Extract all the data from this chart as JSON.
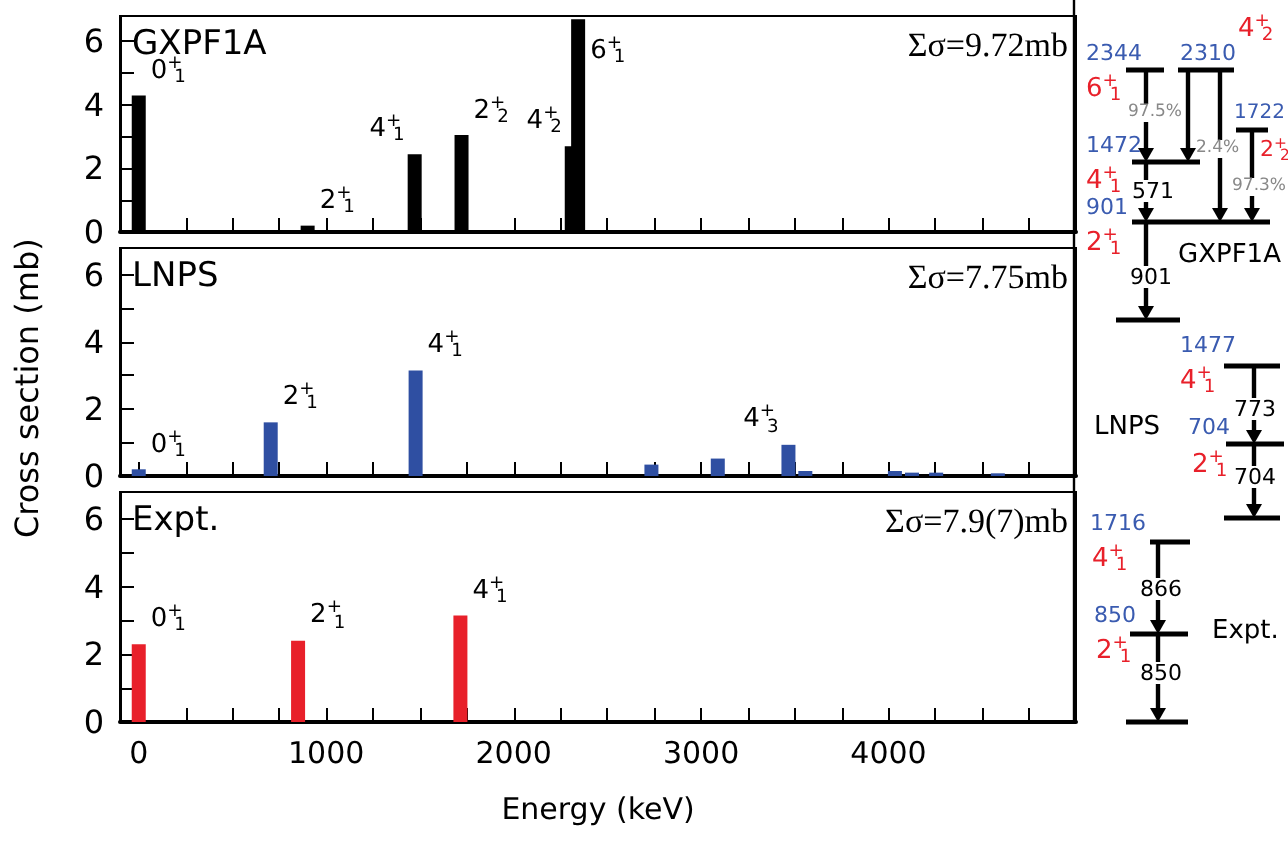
{
  "chart_data": [
    {
      "type": "bar",
      "x": [
        0,
        901,
        1472,
        1722,
        2310,
        2344
      ],
      "values": [
        4.3,
        0.2,
        2.45,
        3.05,
        2.7,
        6.7
      ],
      "color": "#000000",
      "xlim": [
        -100,
        5000
      ],
      "xticks": [
        0,
        {
          "value": 250,
          "label": null
        },
        {
          "value": 500,
          "label": null
        },
        {
          "value": 750,
          "label": null
        },
        1000,
        {
          "value": 1250,
          "label": null
        },
        {
          "value": 1500,
          "label": null
        },
        {
          "value": 1750,
          "label": null
        },
        2000,
        {
          "value": 2250,
          "label": null
        },
        {
          "value": 2500,
          "label": null
        },
        {
          "value": 2750,
          "label": null
        },
        3000,
        {
          "value": 3250,
          "label": null
        },
        {
          "value": 3500,
          "label": null
        },
        {
          "value": 3750,
          "label": null
        },
        4000,
        {
          "value": 4250,
          "label": null
        },
        {
          "value": 4500,
          "label": null
        },
        {
          "value": 4750,
          "label": null
        }
      ],
      "ylim": [
        0,
        6.8
      ],
      "yticks": [
        0,
        {
          "value": 1,
          "label": null
        },
        2,
        {
          "value": 3,
          "label": null
        },
        4,
        {
          "value": 5,
          "label": null
        },
        6
      ],
      "tick_labels": "y",
      "grid": false,
      "annotations": [
        "GXPF1A",
        "Σσ=9.72mb",
        {
          "text": "0$^{+}$$_{1}$",
          "x": 0,
          "y": 4.3
        },
        {
          "text": "2$^{+}$$_{1}$",
          "x": 901,
          "y": 0.2
        },
        {
          "text": "4$^{+}$$_{1}$",
          "x": 1472,
          "y": 2.45
        },
        {
          "text": "2$^{+}$$_{2}$",
          "x": 1722,
          "y": 3.05
        },
        {
          "text": "4$^{+}$$_{2}$",
          "x": 2310,
          "y": 2.7
        },
        {
          "text": "6$^{+}$$_{1}$",
          "x": 2344,
          "y": 6.7
        }
      ]
    },
    {
      "type": "bar",
      "x": [
        0,
        704,
        1477,
        2735,
        3089,
        3466,
        3556,
        4034,
        4125,
        4254,
        4583
      ],
      "values": [
        0.2,
        1.6,
        3.15,
        0.34,
        0.52,
        0.93,
        0.15,
        0.15,
        0.1,
        0.1,
        0.08
      ],
      "color": "#2f4fa2",
      "xlim": [
        -100,
        5000
      ],
      "xticks": [
        0,
        {
          "value": 250,
          "label": null
        },
        {
          "value": 500,
          "label": null
        },
        {
          "value": 750,
          "label": null
        },
        1000,
        {
          "value": 1250,
          "label": null
        },
        {
          "value": 1500,
          "label": null
        },
        {
          "value": 1750,
          "label": null
        },
        2000,
        {
          "value": 2250,
          "label": null
        },
        {
          "value": 2500,
          "label": null
        },
        {
          "value": 2750,
          "label": null
        },
        3000,
        {
          "value": 3250,
          "label": null
        },
        {
          "value": 3500,
          "label": null
        },
        {
          "value": 3750,
          "label": null
        },
        4000,
        {
          "value": 4250,
          "label": null
        },
        {
          "value": 4500,
          "label": null
        },
        {
          "value": 4750,
          "label": null
        }
      ],
      "ylim": [
        0,
        6.8
      ],
      "yticks": [
        0,
        {
          "value": 1,
          "label": null
        },
        2,
        {
          "value": 3,
          "label": null
        },
        4,
        {
          "value": 5,
          "label": null
        },
        6
      ],
      "tick_labels": "y",
      "grid": false,
      "ylabel": "Cross section (mb)",
      "annotations": [
        "LNPS",
        "Σσ=7.75mb",
        {
          "text": "0$^{+}$$_{1}$",
          "x": 0,
          "y": 0.2
        },
        {
          "text": "2$^{+}$$_{1}$",
          "x": 704,
          "y": 1.6
        },
        {
          "text": "4$^{+}$$_{1}$",
          "x": 1477,
          "y": 3.15
        },
        {
          "text": "4$^{+}$$_{3}$",
          "x": 3466,
          "y": 0.93
        }
      ]
    },
    {
      "type": "bar",
      "x": [
        0,
        850,
        1716
      ],
      "values": [
        2.3,
        2.4,
        3.15
      ],
      "color": "#e8202a",
      "xlim": [
        -100,
        5000
      ],
      "xticks": [
        0,
        {
          "value": 250,
          "label": null
        },
        {
          "value": 500,
          "label": null
        },
        {
          "value": 750,
          "label": null
        },
        1000,
        {
          "value": 1250,
          "label": null
        },
        {
          "value": 1500,
          "label": null
        },
        {
          "value": 1750,
          "label": null
        },
        2000,
        {
          "value": 2250,
          "label": null
        },
        {
          "value": 2500,
          "label": null
        },
        {
          "value": 2750,
          "label": null
        },
        3000,
        {
          "value": 3250,
          "label": null
        },
        {
          "value": 3500,
          "label": null
        },
        {
          "value": 3750,
          "label": null
        },
        4000,
        {
          "value": 4250,
          "label": null
        },
        {
          "value": 4500,
          "label": null
        },
        {
          "value": 4750,
          "label": null
        }
      ],
      "ylim": [
        0,
        6.8
      ],
      "yticks": [
        0,
        {
          "value": 1,
          "label": null
        },
        2,
        {
          "value": 3,
          "label": null
        },
        4,
        {
          "value": 5,
          "label": null
        },
        6
      ],
      "grid": false,
      "xlabel": "Energy (keV)",
      "annotations": [
        "Expt.",
        "Σσ=7.9(7)mb",
        {
          "text": "0$^{+}$$_{1}$",
          "x": 0,
          "y": 2.3
        },
        {
          "text": "2$^{+}$$_{1}$",
          "x": 850,
          "y": 2.4
        },
        {
          "text": "4$^{+}$$_{1}$",
          "x": 1716,
          "y": 3.15
        }
      ]
    },
    {
      "type": "other",
      "annotations": [
        "2344",
        "6$^{+}$$_{1}$",
        "2310",
        "4$^{+}$$_{2}$",
        "1722",
        "2$^{+}$$_{2}$",
        "97.5%",
        "2.4%",
        "97.3%",
        "1472",
        "4$^{+}$$_{1}$",
        "571",
        "901",
        "2$^{+}$$_{1}$",
        "GXPF1A",
        "901",
        "1477",
        "4$^{+}$$_{1}$",
        "773",
        "LNPS",
        "704",
        "2$^{+}$$_{1}$",
        "704",
        "1716",
        "4$^{+}$$_{1}$",
        "866",
        "850",
        "2$^{+}$$_{1}$",
        "Expt.",
        "850"
      ]
    }
  ]
}
